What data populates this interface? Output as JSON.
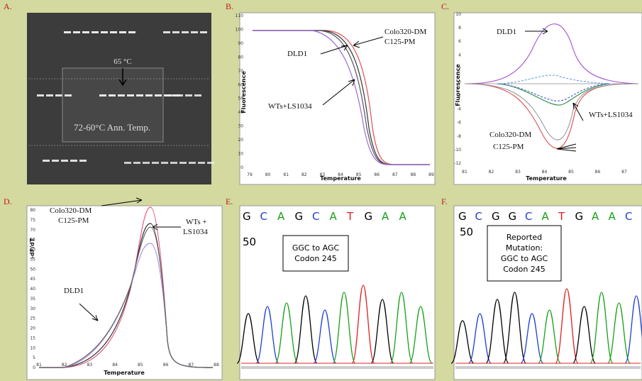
{
  "panels": [
    {
      "label": "A.",
      "annotations": [
        "65 °C",
        "72-60°C Ann. Temp."
      ]
    },
    {
      "label": "B.",
      "y_label": "Fluorescence",
      "x_label": "Temperature",
      "yticks": [
        110,
        100,
        90,
        80,
        70,
        60,
        50,
        40,
        30,
        20,
        10,
        0
      ],
      "xticks": [
        79,
        80,
        81,
        82,
        83,
        84,
        85,
        86,
        87,
        88,
        89
      ],
      "annotations": [
        "Colo320-DM",
        "C125-PM",
        "DLD1",
        "WTs+LS1034"
      ]
    },
    {
      "label": "C.",
      "y_label": "Fluorescence",
      "x_label": "Temperature",
      "yticks": [
        10,
        8,
        6,
        4,
        2,
        0,
        -2,
        -4,
        -6,
        -8,
        -10,
        -12
      ],
      "xticks": [
        81,
        82,
        83,
        84,
        85,
        86,
        87
      ],
      "annotations": [
        "DLD1",
        "WTs+LS1034",
        "Colo320-DM",
        "C125-PM"
      ]
    },
    {
      "label": "D.",
      "y_label": "-dF/dT",
      "x_label": "Temperature",
      "yticks": [
        80,
        75,
        70,
        65,
        60,
        55,
        50,
        45,
        40,
        35,
        30,
        25,
        20,
        15,
        10,
        5,
        0
      ],
      "xticks": [
        81,
        82,
        83,
        84,
        85,
        86,
        87,
        88
      ],
      "annotations": [
        "Colo320-DM",
        "C125-PM",
        "WTs +",
        "LS1034",
        "DLD1"
      ]
    },
    {
      "label": "E.",
      "position": "50",
      "bases": [
        {
          "b": "G",
          "c": "#000000"
        },
        {
          "b": "C",
          "c": "#1f3fd0"
        },
        {
          "b": "A",
          "c": "#16a016"
        },
        {
          "b": "G",
          "c": "#000000"
        },
        {
          "b": "C",
          "c": "#1f3fd0"
        },
        {
          "b": "A",
          "c": "#16a016"
        },
        {
          "b": "T",
          "c": "#e02020"
        },
        {
          "b": "G",
          "c": "#000000"
        },
        {
          "b": "A",
          "c": "#16a016"
        },
        {
          "b": "A",
          "c": "#16a016"
        }
      ],
      "box": [
        "GGC to AGC",
        "Codon 245"
      ]
    },
    {
      "label": "F.",
      "position": "50",
      "bases": [
        {
          "b": "G",
          "c": "#000000"
        },
        {
          "b": "C",
          "c": "#1f3fd0"
        },
        {
          "b": "G",
          "c": "#000000"
        },
        {
          "b": "G",
          "c": "#000000"
        },
        {
          "b": "C",
          "c": "#1f3fd0"
        },
        {
          "b": "A",
          "c": "#16a016"
        },
        {
          "b": "T",
          "c": "#e02020"
        },
        {
          "b": "G",
          "c": "#000000"
        },
        {
          "b": "A",
          "c": "#16a016"
        },
        {
          "b": "A",
          "c": "#16a016"
        },
        {
          "b": "C",
          "c": "#1f3fd0"
        }
      ],
      "box": [
        "Reported",
        "Mutation:",
        "GGC to AGC",
        "Codon 245"
      ]
    }
  ]
}
